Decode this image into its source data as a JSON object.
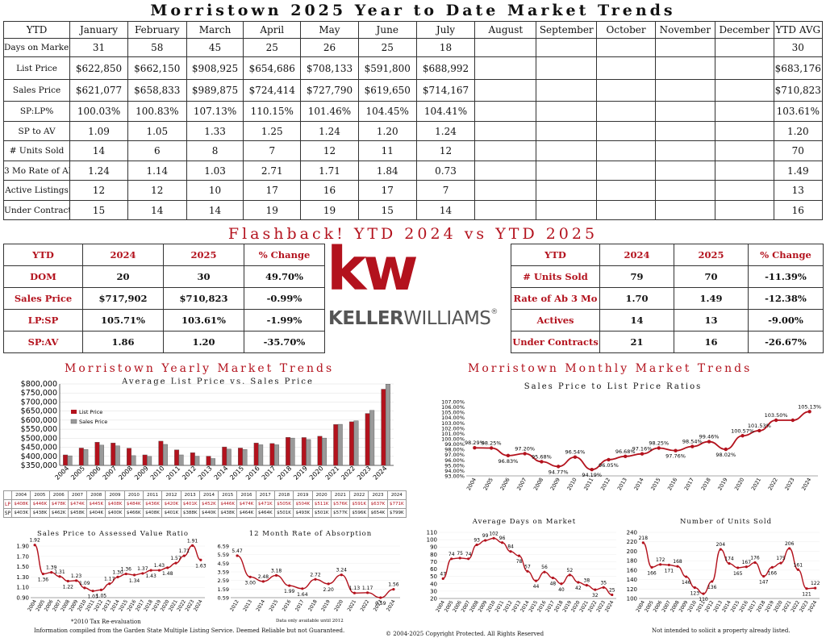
{
  "title": "Morristown 2025 Year to Date Market Trends",
  "ytd_table": {
    "headers": [
      "YTD",
      "January",
      "February",
      "March",
      "April",
      "May",
      "June",
      "July",
      "August",
      "September",
      "October",
      "November",
      "December",
      "YTD AVG"
    ],
    "rows": [
      {
        "label": "Days on Market",
        "values": [
          "31",
          "58",
          "45",
          "25",
          "26",
          "25",
          "18",
          "",
          "",
          "",
          "",
          ""
        ],
        "avg": "30"
      },
      {
        "label": "List Price",
        "values": [
          "$622,850",
          "$662,150",
          "$908,925",
          "$654,686",
          "$708,133",
          "$591,800",
          "$688,992",
          "",
          "",
          "",
          "",
          ""
        ],
        "avg": "$683,176"
      },
      {
        "label": "Sales Price",
        "values": [
          "$621,077",
          "$658,833",
          "$989,875",
          "$724,414",
          "$727,790",
          "$619,650",
          "$714,167",
          "",
          "",
          "",
          "",
          ""
        ],
        "avg": "$710,823"
      },
      {
        "label": "SP:LP%",
        "values": [
          "100.03%",
          "100.83%",
          "107.13%",
          "110.15%",
          "101.46%",
          "104.45%",
          "104.41%",
          "",
          "",
          "",
          "",
          ""
        ],
        "avg": "103.61%"
      },
      {
        "label": "SP to AV",
        "values": [
          "1.09",
          "1.05",
          "1.33",
          "1.25",
          "1.24",
          "1.20",
          "1.24",
          "",
          "",
          "",
          "",
          ""
        ],
        "avg": "1.20"
      },
      {
        "label": "# Units Sold",
        "values": [
          "14",
          "6",
          "8",
          "7",
          "12",
          "11",
          "12",
          "",
          "",
          "",
          "",
          ""
        ],
        "avg": "70"
      },
      {
        "label": "3 Mo Rate of Ab",
        "values": [
          "1.24",
          "1.14",
          "1.03",
          "2.71",
          "1.71",
          "1.84",
          "0.73",
          "",
          "",
          "",
          "",
          ""
        ],
        "avg": "1.49"
      },
      {
        "label": "Active Listings",
        "values": [
          "12",
          "12",
          "10",
          "17",
          "16",
          "17",
          "7",
          "",
          "",
          "",
          "",
          ""
        ],
        "avg": "13"
      },
      {
        "label": "Under Contracts",
        "values": [
          "15",
          "14",
          "14",
          "19",
          "19",
          "15",
          "14",
          "",
          "",
          "",
          "",
          ""
        ],
        "avg": "16"
      }
    ]
  },
  "flashback_title": "Flashback!  YTD 2024 vs YTD 2025",
  "left_compare": {
    "headers": [
      "YTD",
      "2024",
      "2025",
      "% Change"
    ],
    "rows": [
      [
        "DOM",
        "20",
        "30",
        "49.70%"
      ],
      [
        "Sales Price",
        "$717,902",
        "$710,823",
        "-0.99%"
      ],
      [
        "LP:SP",
        "105.71%",
        "103.61%",
        "-1.99%"
      ],
      [
        "SP:AV",
        "1.86",
        "1.20",
        "-35.70%"
      ]
    ]
  },
  "right_compare": {
    "headers": [
      "YTD",
      "2024",
      "2025",
      "% Change"
    ],
    "rows": [
      [
        "# Units Sold",
        "79",
        "70",
        "-11.39%"
      ],
      [
        "Rate of Ab 3 Mo",
        "1.70",
        "1.49",
        "-12.38%"
      ],
      [
        "Actives",
        "14",
        "13",
        "-9.00%"
      ],
      [
        "Under Contracts",
        "21",
        "16",
        "-26.67%"
      ]
    ]
  },
  "logo": {
    "mark": "kw",
    "wordmark_bold": "KELLER",
    "wordmark_light": "WILLIAMS",
    "registered": "®"
  },
  "yearly_title": "Morristown Yearly Market Trends",
  "monthly_title": "Morristown Monthly Market Trends",
  "footer": {
    "left": "Information compiled from the Garden State Multiple Listing Service.  Deemed Reliable but not Guaranteed.",
    "center": "© 2004-2025 Copyright Protected.  All Rights Reserved",
    "right": "Not intended to solicit a property already listed.",
    "note_reval": "*2010 Tax Re-evaluation",
    "note_2012": "Data only available until 2012"
  },
  "colors": {
    "brand_red": "#b3121d",
    "bar_gray": "#9a9a9a",
    "line_red": "#b3121d"
  },
  "chart_data": [
    {
      "type": "bar",
      "title": "Average List Price vs. Sales Price",
      "categories": [
        "2004",
        "2005",
        "2006",
        "2007",
        "2008",
        "2009",
        "2010",
        "2011",
        "2012",
        "2013",
        "2014",
        "2015",
        "2016",
        "2017",
        "2018",
        "2019",
        "2020",
        "2021",
        "2022",
        "2023",
        "2024"
      ],
      "series": [
        {
          "name": "List Price",
          "values": [
            408000,
            446000,
            478000,
            474000,
            445000,
            408000,
            484000,
            436000,
            420000,
            401000,
            452000,
            446000,
            474000,
            471000,
            505000,
            504000,
            511000,
            576000,
            591000,
            637000,
            771000
          ]
        },
        {
          "name": "Sales Price",
          "values": [
            403000,
            438000,
            462000,
            458000,
            404000,
            400000,
            466000,
            408000,
            401000,
            388000,
            440000,
            438000,
            464000,
            464000,
            501000,
            493000,
            501000,
            577000,
            596000,
            654000,
            799000
          ]
        }
      ],
      "ylim": [
        350000,
        800000
      ],
      "yticks": [
        "$350,000",
        "$400,000",
        "$450,000",
        "$500,000",
        "$550,000",
        "$600,000",
        "$650,000",
        "$700,000",
        "$750,000",
        "$800,000"
      ],
      "table_row_labels": [
        "LP",
        "SP"
      ],
      "lp_labels": [
        "$408K",
        "$446K",
        "$478K",
        "$474K",
        "$445K",
        "$408K",
        "$484K",
        "$436K",
        "$420K",
        "$401K",
        "$452K",
        "$446K",
        "$474K",
        "$471K",
        "$505K",
        "$504K",
        "$511K",
        "$576K",
        "$591K",
        "$637K",
        "$771K"
      ],
      "sp_labels": [
        "$403K",
        "$438K",
        "$462K",
        "$458K",
        "$404K",
        "$400K",
        "$466K",
        "$408K",
        "$401K",
        "$388K",
        "$440K",
        "$438K",
        "$464K",
        "$464K",
        "$501K",
        "$493K",
        "$501K",
        "$577K",
        "$596K",
        "$654K",
        "$799K"
      ],
      "legend": "top-left"
    },
    {
      "type": "line",
      "title": "Sales Price to List Price Ratios",
      "x": [
        "2004",
        "2005",
        "2006",
        "2007",
        "2008",
        "2009",
        "2010",
        "2011",
        "2012",
        "2013",
        "2014",
        "2015",
        "2016",
        "2017",
        "2018",
        "2019",
        "2020",
        "2021",
        "2022",
        "2023",
        "2024"
      ],
      "values": [
        98.29,
        98.25,
        96.83,
        97.2,
        95.68,
        94.77,
        96.54,
        94.19,
        96.05,
        96.68,
        97.16,
        98.25,
        97.76,
        98.54,
        99.46,
        98.02,
        100.57,
        101.53,
        103.5,
        103.5,
        105.13
      ],
      "labels": [
        "98.29%",
        "98.25%",
        "96.83%",
        "97.20%",
        "95.68%",
        "94.77%",
        "96.54%",
        "94.19%",
        "96.05%",
        "96.68%",
        "97.16%",
        "98.25%",
        "97.76%",
        "98.54%",
        "99.46%",
        "98.02%",
        "100.57%",
        "101.53%",
        "103.50%",
        "",
        "105.13%"
      ],
      "ylim": [
        93,
        107
      ],
      "yticks": [
        "93.00%",
        "95.00%",
        "97.00%",
        "99.00%",
        "101.00%",
        "103.00%",
        "105.00%",
        "107.00%"
      ],
      "ytick_labels": [
        "93.00%",
        "94.00%",
        "95.00%",
        "96.00%",
        "97.00%",
        "98.00%",
        "99.00%",
        "100.00%",
        "101.00%",
        "102.00%",
        "103.00%",
        "104.00%",
        "105.00%",
        "106.00%",
        "107.00%"
      ]
    },
    {
      "type": "line",
      "title": "Sales Price to Assessed Value Ratio",
      "x": [
        "2004",
        "2005",
        "2006",
        "2007",
        "2008",
        "2009",
        "2010",
        "2011",
        "2012",
        "2013",
        "2014",
        "2015",
        "2016",
        "2017",
        "2018",
        "2019",
        "2020",
        "2021",
        "2022",
        "2023",
        "2024"
      ],
      "values": [
        1.92,
        1.36,
        1.39,
        1.31,
        1.22,
        1.23,
        1.09,
        1.03,
        1.05,
        1.17,
        1.3,
        1.36,
        1.34,
        1.37,
        1.43,
        1.43,
        1.48,
        1.57,
        1.71,
        1.91,
        1.63
      ],
      "labels": [
        "1.92",
        "1.36",
        "1.39",
        "1.31",
        "1.22",
        "1.23",
        "1.09",
        "1.03",
        "1.05",
        "1.17",
        "1.30",
        "1.36",
        "1.34",
        "1.37",
        "1.43",
        "1.43",
        "1.48",
        "1.57",
        "1.71",
        "1.91",
        "1.63"
      ],
      "ylim": [
        0.9,
        1.9
      ],
      "yticks": [
        "0.90",
        "1.10",
        "1.30",
        "1.50",
        "1.70",
        "1.90"
      ]
    },
    {
      "type": "line",
      "title": "12 Month Rate of Absorption",
      "x": [
        "2012",
        "2013",
        "2014",
        "2015",
        "2016",
        "2017",
        "2018",
        "2019",
        "2020",
        "2021",
        "2022",
        "2023",
        "2024"
      ],
      "values": [
        5.47,
        3.0,
        2.48,
        3.18,
        1.99,
        1.64,
        2.72,
        2.2,
        3.24,
        1.13,
        1.17,
        0.59,
        1.56
      ],
      "labels": [
        "5.47",
        "3.00",
        "2.48",
        "3.18",
        "1.99",
        "1.64",
        "2.72",
        "2.20",
        "3.24",
        "1.13",
        "1.17",
        "0.59",
        "1.56"
      ],
      "ylim": [
        0.59,
        6.59
      ],
      "yticks": [
        "0.59",
        "1.59",
        "2.59",
        "3.59",
        "4.59",
        "5.59",
        "6.59"
      ]
    },
    {
      "type": "line",
      "title": "Average Days on Market",
      "x": [
        "2004",
        "2005",
        "2006",
        "2007",
        "2008",
        "2009",
        "2010",
        "2011",
        "2012",
        "2013",
        "2014",
        "2015",
        "2016",
        "2017",
        "2018",
        "2019",
        "2020",
        "2021",
        "2022",
        "2023",
        "2024"
      ],
      "values": [
        47,
        74,
        75,
        74,
        93,
        99,
        102,
        96,
        84,
        78,
        57,
        44,
        56,
        48,
        40,
        52,
        42,
        38,
        32,
        35,
        25
      ],
      "labels": [
        "47",
        "74",
        "75",
        "74",
        "93",
        "99",
        "102",
        "96",
        "84",
        "78",
        "57",
        "44",
        "56",
        "48",
        "40",
        "52",
        "42",
        "38",
        "32",
        "35",
        "25"
      ],
      "ylim": [
        20,
        110
      ],
      "yticks": [
        "20",
        "30",
        "40",
        "50",
        "60",
        "70",
        "80",
        "90",
        "100",
        "110"
      ]
    },
    {
      "type": "line",
      "title": "Number of Units Sold",
      "x": [
        "2004",
        "2005",
        "2006",
        "2007",
        "2008",
        "2009",
        "2010",
        "2011",
        "2012",
        "2013",
        "2014",
        "2015",
        "2016",
        "2017",
        "2018",
        "2019",
        "2020",
        "2021",
        "2022",
        "2023",
        "2024"
      ],
      "values": [
        218,
        166,
        172,
        171,
        168,
        146,
        123,
        110,
        136,
        204,
        174,
        165,
        167,
        176,
        147,
        166,
        175,
        206,
        161,
        121,
        122
      ],
      "labels": [
        "218",
        "166",
        "172",
        "171",
        "168",
        "146",
        "123",
        "110",
        "136",
        "204",
        "174",
        "165",
        "167",
        "176",
        "147",
        "166",
        "175",
        "206",
        "161",
        "121",
        "122"
      ],
      "ylim": [
        100,
        240
      ],
      "yticks": [
        "100",
        "120",
        "140",
        "160",
        "180",
        "200",
        "220",
        "240"
      ]
    }
  ]
}
